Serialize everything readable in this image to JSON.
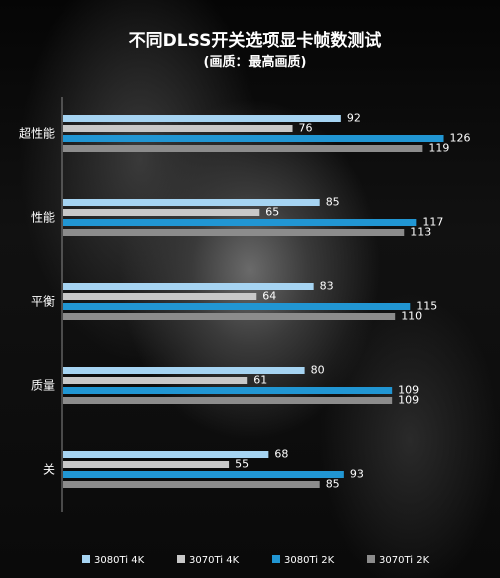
{
  "chart_data": {
    "type": "bar",
    "orientation": "horizontal",
    "title": "不同DLSS开关选项显卡帧数测试",
    "subtitle": "(画质：最高画质)",
    "categories": [
      "超性能",
      "性能",
      "平衡",
      "质量",
      "关"
    ],
    "series": [
      {
        "name": "3080Ti  4K",
        "color": "#a6d4f2",
        "values": [
          92,
          85,
          83,
          80,
          68
        ]
      },
      {
        "name": "3070Ti  4K",
        "color": "#c8c8c8",
        "values": [
          76,
          65,
          64,
          61,
          55
        ]
      },
      {
        "name": "3080Ti  2K",
        "color": "#2196d3",
        "values": [
          126,
          117,
          115,
          109,
          93
        ]
      },
      {
        "name": "3070Ti  2K",
        "color": "#8c8c8c",
        "values": [
          119,
          113,
          110,
          109,
          85
        ]
      }
    ],
    "xlim": [
      0,
      150
    ],
    "legend_position": "bottom",
    "grid": false
  }
}
